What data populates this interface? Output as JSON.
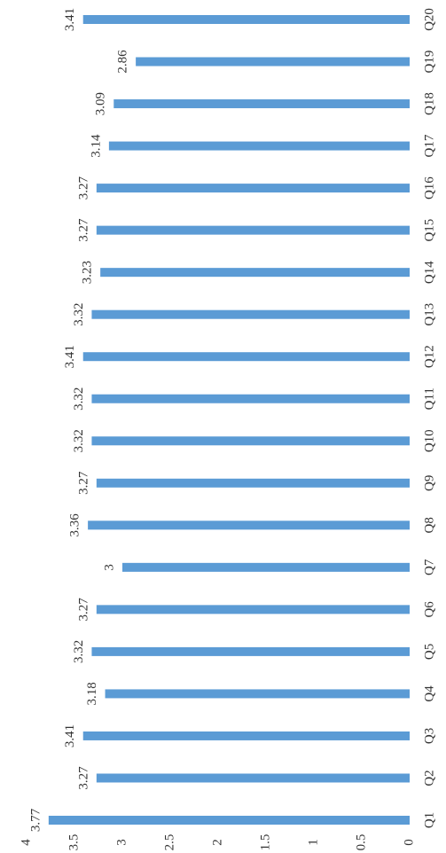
{
  "chart_data": {
    "type": "bar",
    "orientation": "rotated",
    "categories": [
      "Q1",
      "Q2",
      "Q3",
      "Q4",
      "Q5",
      "Q6",
      "Q7",
      "Q8",
      "Q9",
      "Q10",
      "Q11",
      "Q12",
      "Q13",
      "Q14",
      "Q15",
      "Q16",
      "Q17",
      "Q18",
      "Q19",
      "Q20"
    ],
    "values": [
      3.77,
      3.27,
      3.41,
      3.18,
      3.32,
      3.27,
      3,
      3.36,
      3.27,
      3.32,
      3.32,
      3.41,
      3.32,
      3.23,
      3.27,
      3.27,
      3.14,
      3.09,
      2.86,
      3.41
    ],
    "color": "#5b9bd5",
    "ylim": [
      0,
      4
    ],
    "yticks": [
      0,
      0.5,
      1,
      1.5,
      2,
      2.5,
      3,
      3.5,
      4
    ],
    "grid": false
  }
}
